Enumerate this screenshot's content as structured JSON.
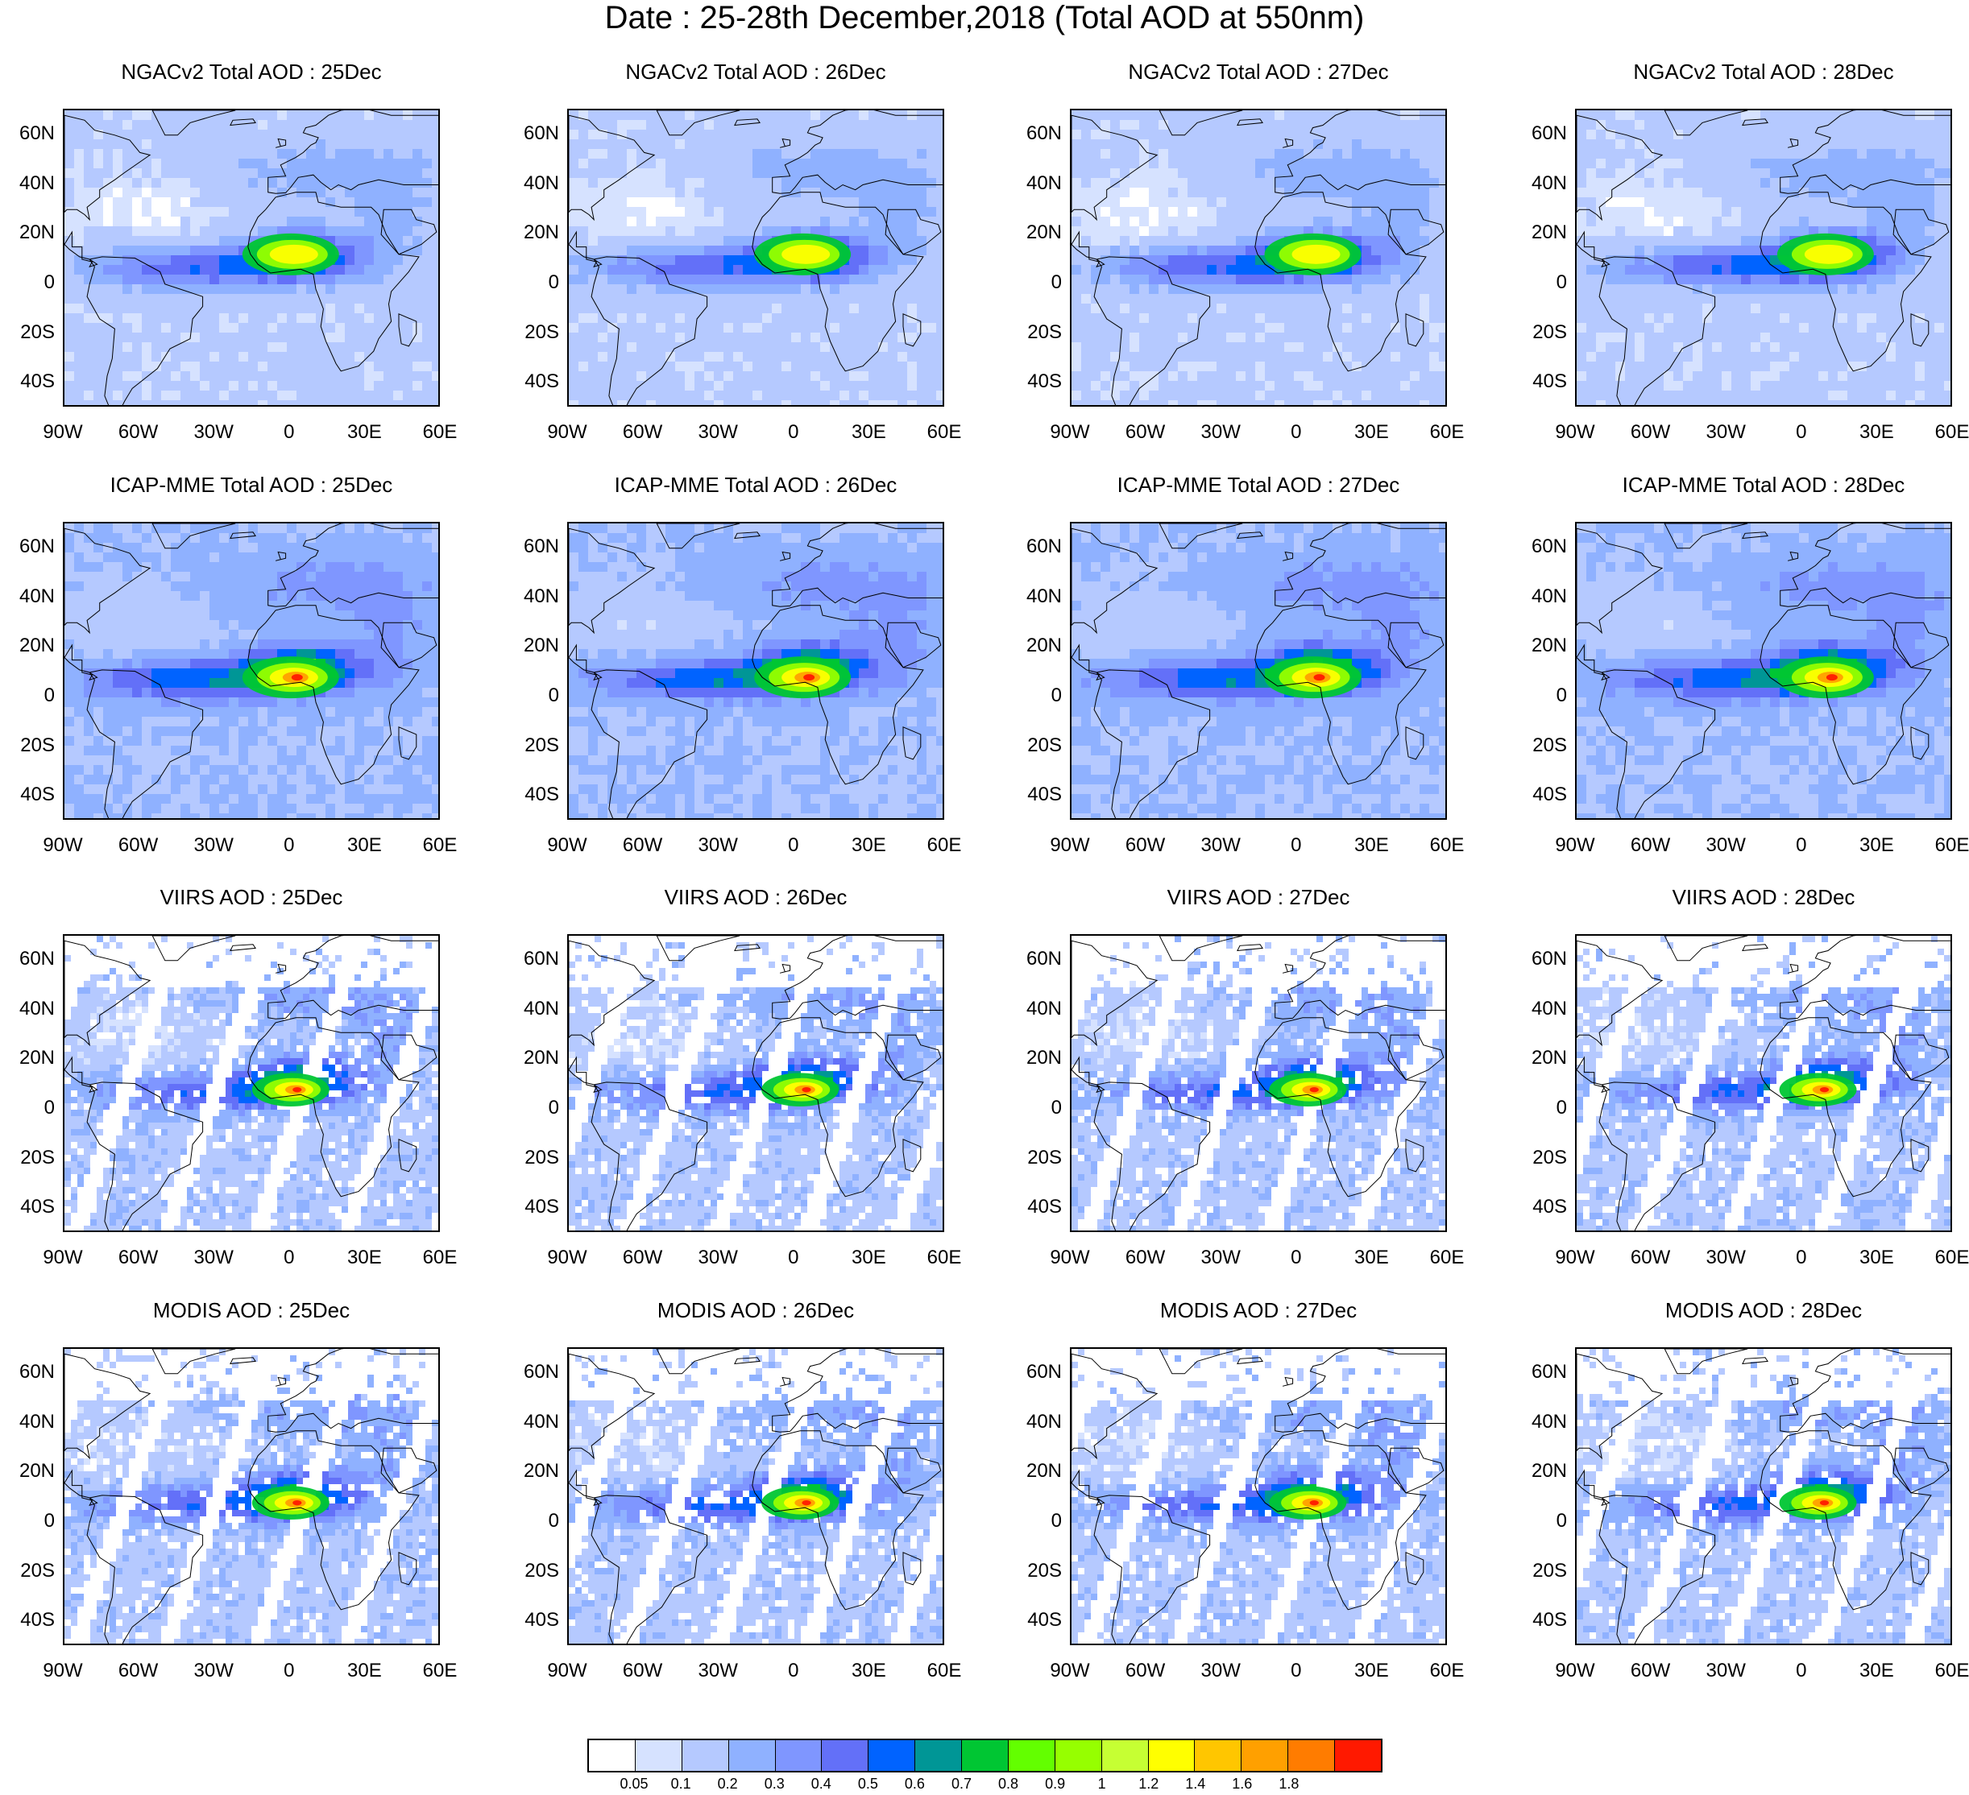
{
  "figure_title": "Date : 25-28th December,2018 (Total AOD at 550nm)",
  "lat_ticks": [
    "60N",
    "40N",
    "20N",
    "0",
    "20S",
    "40S"
  ],
  "lon_ticks": [
    "90W",
    "60W",
    "30W",
    "0",
    "30E",
    "60E"
  ],
  "rows": [
    {
      "panels": [
        "NGACv2 Total AOD : 25Dec",
        "NGACv2 Total AOD : 26Dec",
        "NGACv2 Total AOD : 27Dec",
        "NGACv2 Total AOD : 28Dec"
      ]
    },
    {
      "panels": [
        "ICAP-MME Total AOD : 25Dec",
        "ICAP-MME Total AOD : 26Dec",
        "ICAP-MME Total AOD : 27Dec",
        "ICAP-MME Total AOD : 28Dec"
      ]
    },
    {
      "panels": [
        "VIIRS AOD : 25Dec",
        "VIIRS AOD : 26Dec",
        "VIIRS AOD : 27Dec",
        "VIIRS AOD : 28Dec"
      ]
    },
    {
      "panels": [
        "MODIS AOD : 25Dec",
        "MODIS AOD : 26Dec",
        "MODIS AOD : 27Dec",
        "MODIS AOD : 28Dec"
      ]
    }
  ],
  "colorbar": {
    "colors": [
      "#ffffff",
      "#d6e2ff",
      "#b5c9ff",
      "#8fb1ff",
      "#7f96ff",
      "#6370f8",
      "#0063ff",
      "#009696",
      "#00c633",
      "#63ff00",
      "#96ff00",
      "#c6ff33",
      "#ffff00",
      "#ffc600",
      "#ffa000",
      "#ff7c00",
      "#ff1900"
    ],
    "labels": [
      "0.05",
      "0.1",
      "0.2",
      "0.3",
      "0.4",
      "0.5",
      "0.6",
      "0.7",
      "0.8",
      "0.9",
      "1",
      "1.2",
      "1.4",
      "1.6",
      "1.8"
    ]
  }
}
